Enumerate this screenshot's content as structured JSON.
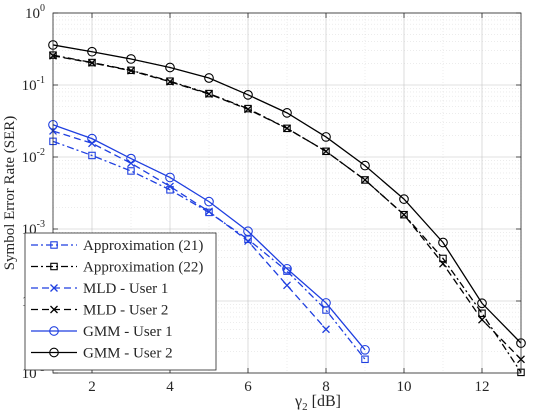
{
  "chart_data": {
    "type": "line",
    "title": "",
    "xlabel_main": "γ",
    "xlabel_sub": "2",
    "xlabel_unit": " [dB]",
    "ylabel": "Symbol Error Rate (SER)",
    "yscale": "log",
    "xlim": [
      1,
      13
    ],
    "ylim": [
      1e-05,
      1
    ],
    "x_ticks": [
      2,
      4,
      6,
      8,
      10,
      12
    ],
    "y_ticks": [
      {
        "value": 1,
        "base": "10",
        "exp": "0"
      },
      {
        "value": 0.1,
        "base": "10",
        "exp": "-1"
      },
      {
        "value": 0.01,
        "base": "10",
        "exp": "-2"
      },
      {
        "value": 0.001,
        "base": "10",
        "exp": "-3"
      },
      {
        "value": 0.0001,
        "base": "10",
        "exp": "-4"
      },
      {
        "value": 1e-05,
        "base": "10",
        "exp": "-5"
      }
    ],
    "grid": true,
    "minor_grid": true,
    "legend_position": "bottom-left",
    "colors": {
      "blue": "#1f3fe0",
      "black": "#000000"
    },
    "series": [
      {
        "name": "Approximation (21)",
        "color": "#1f3fe0",
        "dash": "dashdot",
        "marker": "square",
        "x": [
          1,
          2,
          3,
          4,
          5,
          6,
          7,
          8,
          9
        ],
        "y": [
          0.0165,
          0.0105,
          0.0064,
          0.0035,
          0.0017,
          0.00072,
          0.00026,
          7.5e-05,
          1.55e-05
        ]
      },
      {
        "name": "Approximation (22)",
        "color": "#000000",
        "dash": "dashdot",
        "marker": "square",
        "x": [
          1,
          2,
          3,
          4,
          5,
          6,
          7,
          8,
          9,
          10,
          11,
          12,
          13
        ],
        "y": [
          0.26,
          0.205,
          0.16,
          0.113,
          0.076,
          0.047,
          0.025,
          0.012,
          0.0048,
          0.00158,
          0.00039,
          6.75e-05,
          1.02e-05
        ]
      },
      {
        "name": "MLD - User 1",
        "color": "#1f3fe0",
        "dash": "dashed",
        "marker": "x",
        "x": [
          1,
          2,
          3,
          4,
          5,
          6,
          7,
          8
        ],
        "y": [
          0.023,
          0.0155,
          0.0082,
          0.0039,
          0.00175,
          0.00068,
          0.000165,
          4.05e-05
        ]
      },
      {
        "name": "MLD - User 2",
        "color": "#000000",
        "dash": "dashed",
        "marker": "x",
        "x": [
          1,
          2,
          3,
          4,
          5,
          6,
          7,
          8,
          9,
          10,
          11,
          12,
          13
        ],
        "y": [
          0.255,
          0.203,
          0.158,
          0.111,
          0.075,
          0.046,
          0.025,
          0.012,
          0.0048,
          0.00158,
          0.00033,
          5.5e-05,
          1.55e-05
        ]
      },
      {
        "name": "GMM - User 1",
        "color": "#1f3fe0",
        "dash": "solid",
        "marker": "circle",
        "x": [
          1,
          2,
          3,
          4,
          5,
          6,
          7,
          8,
          9
        ],
        "y": [
          0.028,
          0.018,
          0.0095,
          0.0052,
          0.0024,
          0.00093,
          0.00028,
          9.4e-05,
          2.1e-05
        ]
      },
      {
        "name": "GMM - User 2",
        "color": "#000000",
        "dash": "solid",
        "marker": "circle",
        "x": [
          1,
          2,
          3,
          4,
          5,
          6,
          7,
          8,
          9,
          10,
          11,
          12,
          13
        ],
        "y": [
          0.36,
          0.29,
          0.23,
          0.175,
          0.125,
          0.073,
          0.041,
          0.019,
          0.0076,
          0.0026,
          0.00065,
          9.3e-05,
          2.6e-05
        ]
      }
    ]
  }
}
